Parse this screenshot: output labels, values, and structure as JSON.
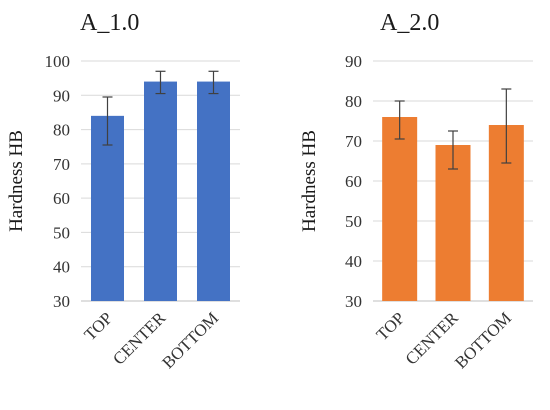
{
  "chart_data": [
    {
      "type": "bar",
      "title": "A_1.0",
      "ylabel": "Hardness HB",
      "categories": [
        "TOP",
        "CENTER",
        "BOTTOM"
      ],
      "values": [
        84,
        94,
        94
      ],
      "error_low": [
        75.5,
        90.5,
        90.5
      ],
      "error_high": [
        89.5,
        97,
        97
      ],
      "ylim": [
        30,
        100
      ],
      "yticks": [
        30,
        40,
        50,
        60,
        70,
        80,
        90,
        100
      ],
      "color": "#4472C4",
      "grid": true
    },
    {
      "type": "bar",
      "title": "A_2.0",
      "ylabel": "Hardness HB",
      "categories": [
        "TOP",
        "CENTER",
        "BOTTOM"
      ],
      "values": [
        76,
        69,
        74
      ],
      "error_low": [
        70.5,
        63,
        64.5
      ],
      "error_high": [
        80,
        72.5,
        83
      ],
      "ylim": [
        30,
        90
      ],
      "yticks": [
        30,
        40,
        50,
        60,
        70,
        80,
        90
      ],
      "color": "#ED7D31",
      "grid": true
    }
  ]
}
